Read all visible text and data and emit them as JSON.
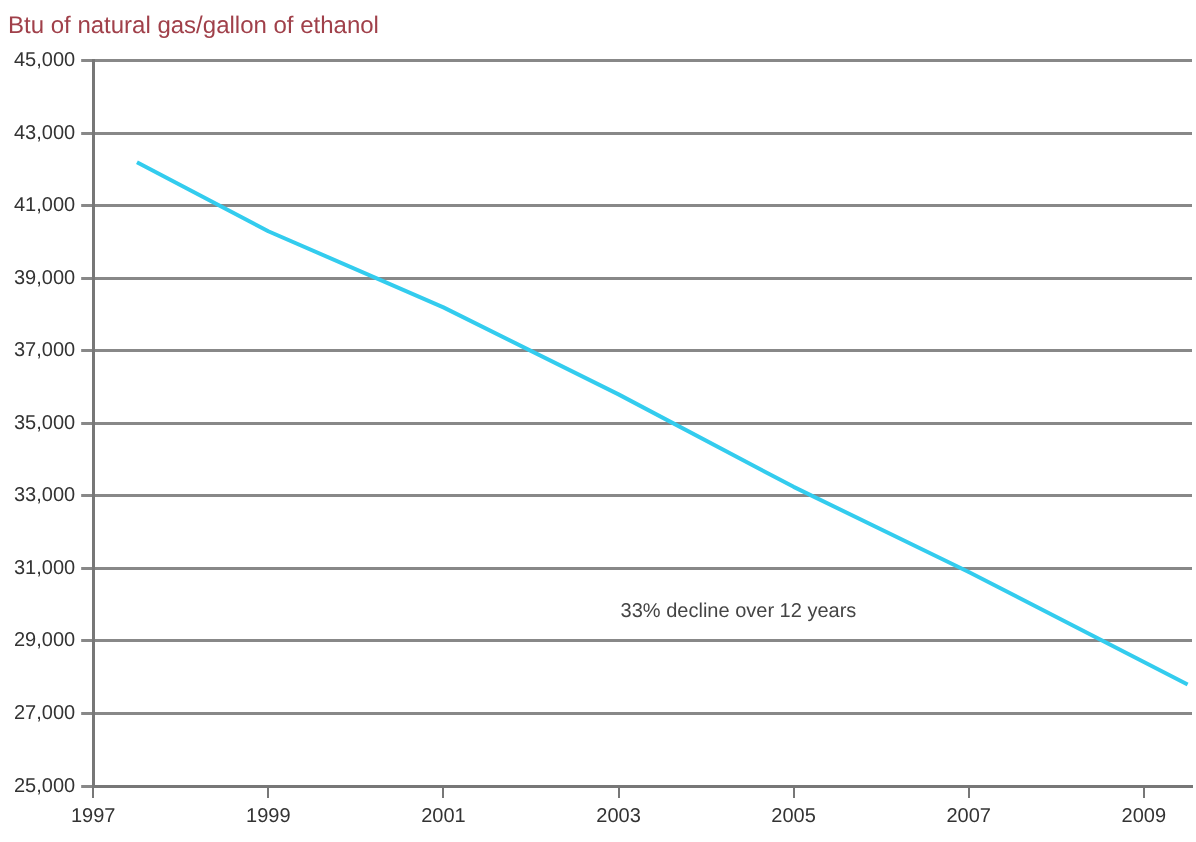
{
  "chart_data": {
    "type": "line",
    "title": "Btu of natural gas/gallon of ethanol",
    "annotations": [
      "33% decline over 12 years"
    ],
    "series": [
      {
        "color": "#33ccee",
        "x": [
          1997.5,
          1999,
          2001,
          2003,
          2005,
          2007,
          2009.5
        ],
        "values": [
          42200,
          40300,
          38200,
          35800,
          33250,
          30900,
          27800
        ]
      }
    ],
    "xlim": [
      1997,
      2009.55
    ],
    "xticks": [
      1997,
      1999,
      2001,
      2003,
      2005,
      2007,
      2009
    ],
    "ylim": [
      25000,
      45000
    ],
    "yticks": [
      {
        "value": 25000,
        "label": "25,000"
      },
      {
        "value": 27000,
        "label": "27,000"
      },
      {
        "value": 29000,
        "label": "29,000"
      },
      {
        "value": 31000,
        "label": "31,000"
      },
      {
        "value": 33000,
        "label": "33,000"
      },
      {
        "value": 35000,
        "label": "35,000"
      },
      {
        "value": 37000,
        "label": "37,000"
      },
      {
        "value": 39000,
        "label": "39,000"
      },
      {
        "value": 41000,
        "label": "41,000"
      },
      {
        "value": 43000,
        "label": "43,000"
      },
      {
        "value": 45000,
        "label": "45,000"
      }
    ],
    "grid": "y",
    "legend": false,
    "marker": "none",
    "line_style": "solid"
  }
}
